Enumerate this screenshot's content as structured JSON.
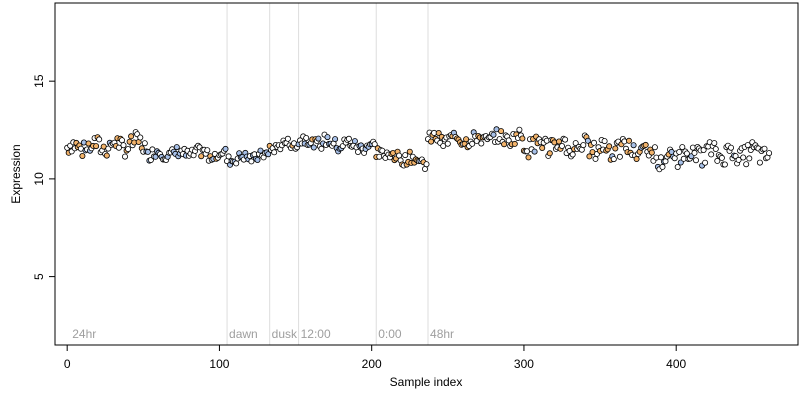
{
  "chart_data": {
    "type": "scatter",
    "title": "",
    "xlabel": "Sample index",
    "ylabel": "Expression",
    "xlim": [
      -8,
      480
    ],
    "ylim": [
      1.5,
      19
    ],
    "x_ticks": [
      0,
      100,
      200,
      300,
      400
    ],
    "y_ticks": [
      5,
      10,
      15
    ],
    "grid": false,
    "legend": "none",
    "colors": {
      "background": "#ffffff",
      "axis": "#000000",
      "point_stroke": "#000000",
      "point_fill_default": "#ffffff",
      "point_fill_blue": "#a7c0e8",
      "point_fill_orange": "#f2b36b",
      "vline": "#dddddd",
      "marker_text": "#9e9e9e"
    },
    "time_markers": [
      {
        "x": 2,
        "label": "24hr",
        "line": false
      },
      {
        "x": 105,
        "label": "dawn",
        "line": true
      },
      {
        "x": 133,
        "label": "dusk",
        "line": true
      },
      {
        "x": 152,
        "label": "12:00",
        "line": true
      },
      {
        "x": 203,
        "label": "0:00",
        "line": true
      },
      {
        "x": 237,
        "label": "48hr",
        "line": true
      }
    ],
    "point_segments": [
      {
        "x0": 0,
        "x1": 52,
        "y0": 11.6,
        "y1": 11.8,
        "amp": 0.45,
        "fill": "mixed_orange"
      },
      {
        "x0": 52,
        "x1": 105,
        "y0": 11.3,
        "y1": 11.3,
        "amp": 0.3,
        "fill": "mixed_blue"
      },
      {
        "x0": 105,
        "x1": 133,
        "y0": 11.0,
        "y1": 11.2,
        "amp": 0.25,
        "fill": "mixed_blue"
      },
      {
        "x0": 133,
        "x1": 152,
        "y0": 11.6,
        "y1": 11.9,
        "amp": 0.25,
        "fill": "default"
      },
      {
        "x0": 152,
        "x1": 203,
        "y0": 12.0,
        "y1": 11.6,
        "amp": 0.35,
        "fill": "mixed_blue"
      },
      {
        "x0": 203,
        "x1": 237,
        "y0": 11.4,
        "y1": 10.8,
        "amp": 0.3,
        "fill": "mixed_orange"
      },
      {
        "x0": 237,
        "x1": 300,
        "y0": 12.0,
        "y1": 12.1,
        "amp": 0.35,
        "fill": "mixed_orange"
      },
      {
        "x0": 300,
        "x1": 388,
        "y0": 11.8,
        "y1": 11.4,
        "amp": 0.5,
        "fill": "mixed_orange"
      },
      {
        "x0": 388,
        "x1": 400,
        "y0": 10.8,
        "y1": 11.2,
        "amp": 0.4,
        "fill": "mixed_blue"
      },
      {
        "x0": 400,
        "x1": 462,
        "y0": 11.3,
        "y1": 11.3,
        "amp": 0.5,
        "fill": "default"
      }
    ]
  }
}
